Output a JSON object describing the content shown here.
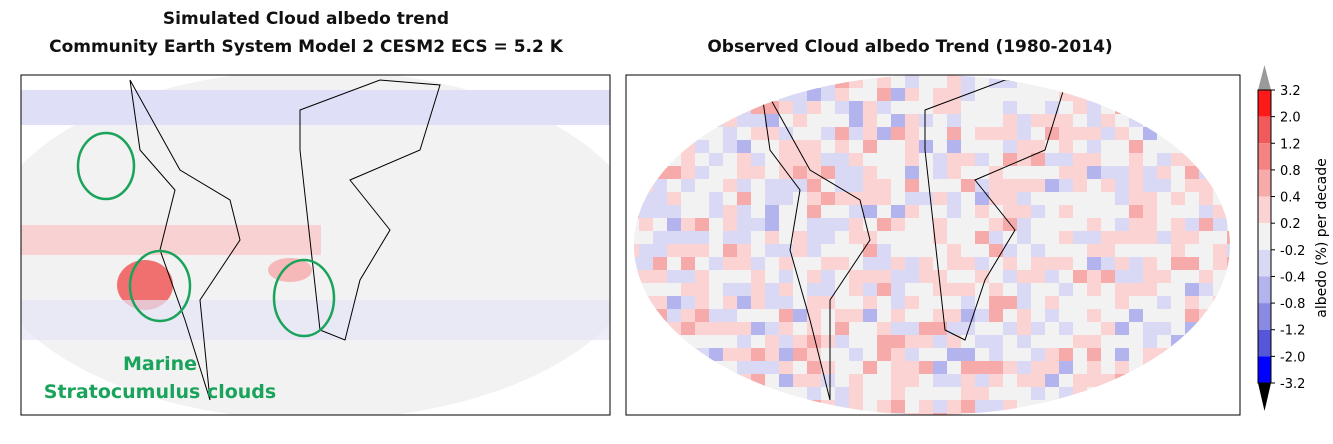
{
  "left_panel": {
    "title_lines": [
      "Simulated Cloud albedo trend",
      "Community Earth System Model 2  CESM2  ECS = 5.2 K"
    ],
    "annotation_lines": [
      "Marine",
      "Stratocumulus clouds"
    ]
  },
  "right_panel": {
    "title": "Observed Cloud albedo Trend  (1980-2014)"
  },
  "colorbar": {
    "label": "albedo (%) per decade",
    "ticks": [
      3.2,
      {
        "value": 2,
        "label": "2.0"
      },
      1.2,
      0.8,
      0.4,
      0.2,
      -0.2,
      -0.4,
      -0.8,
      -1.2,
      {
        "value": -2,
        "label": "-2.0"
      },
      -3.2
    ],
    "colors": [
      "#ff1a1a",
      "#f05a5a",
      "#f48484",
      "#f7aaaa",
      "#fbd3d3",
      "#f2f2f2",
      "#d9d9f5",
      "#b3b3ee",
      "#8a8ae2",
      "#5656d8",
      "#0000ff"
    ],
    "over_color": "#9a9a9a",
    "under_color": "#000000"
  }
}
